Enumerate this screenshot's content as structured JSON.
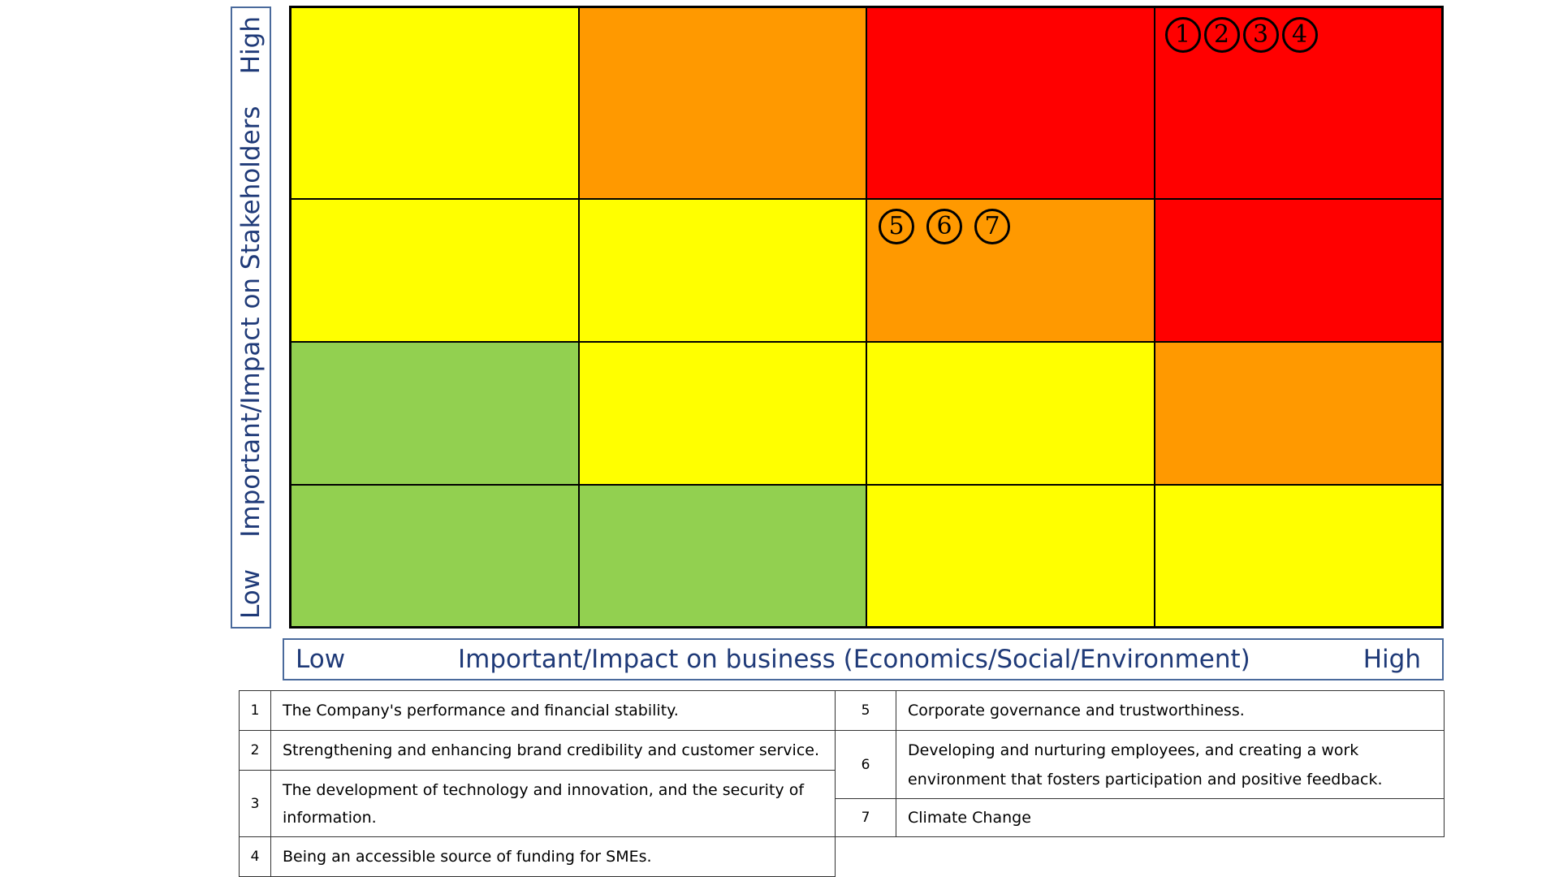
{
  "chart_data": {
    "type": "heatmap",
    "title": "",
    "xlabel": "Important/Impact on business (Economics/Social/Environment)",
    "ylabel": "Important/Impact on Stakeholders",
    "x_low_label": "Low",
    "x_high_label": "High",
    "y_low_label": "Low",
    "y_high_label": "High",
    "colors": {
      "green": "#92d050",
      "yellow": "#ffff00",
      "orange": "#ff9900",
      "red": "#ff0000"
    },
    "grid_rows_top_to_bottom": [
      [
        "yellow",
        "orange",
        "red",
        "red"
      ],
      [
        "yellow",
        "yellow",
        "orange",
        "red"
      ],
      [
        "green",
        "yellow",
        "yellow",
        "orange"
      ],
      [
        "green",
        "green",
        "yellow",
        "yellow"
      ]
    ],
    "issues": [
      {
        "id": "1",
        "label": "The Company's performance and financial stability.",
        "column": 4,
        "row_from_top": 1
      },
      {
        "id": "2",
        "label": "Strengthening and enhancing brand credibility and customer service.",
        "column": 4,
        "row_from_top": 1
      },
      {
        "id": "3",
        "label": "The development of technology and innovation, and the security of information.",
        "column": 4,
        "row_from_top": 1
      },
      {
        "id": "4",
        "label": "Being an accessible source of funding for SMEs.",
        "column": 4,
        "row_from_top": 1
      },
      {
        "id": "5",
        "label": "Corporate governance and trustworthiness.",
        "column": 3,
        "row_from_top": 2
      },
      {
        "id": "6",
        "label": "Developing and nurturing employees, and creating a work environment that fosters participation and positive feedback.",
        "column": 3,
        "row_from_top": 2
      },
      {
        "id": "7",
        "label": "Climate Change",
        "column": 3,
        "row_from_top": 2
      }
    ]
  },
  "legend": {
    "left": [
      {
        "num": "1",
        "text": "The Company's performance and financial stability."
      },
      {
        "num": "2",
        "text": "Strengthening and enhancing brand credibility and customer service."
      },
      {
        "num": "3",
        "text": "The development of technology and innovation, and the security of information."
      },
      {
        "num": "4",
        "text": "Being an accessible source of funding for SMEs."
      }
    ],
    "right": [
      {
        "num": "5",
        "text": "Corporate governance and trustworthiness."
      },
      {
        "num": "6",
        "text": "Developing and nurturing employees, and creating a work environment that fosters participation and positive feedback."
      },
      {
        "num": "7",
        "text": "Climate Change"
      }
    ]
  }
}
